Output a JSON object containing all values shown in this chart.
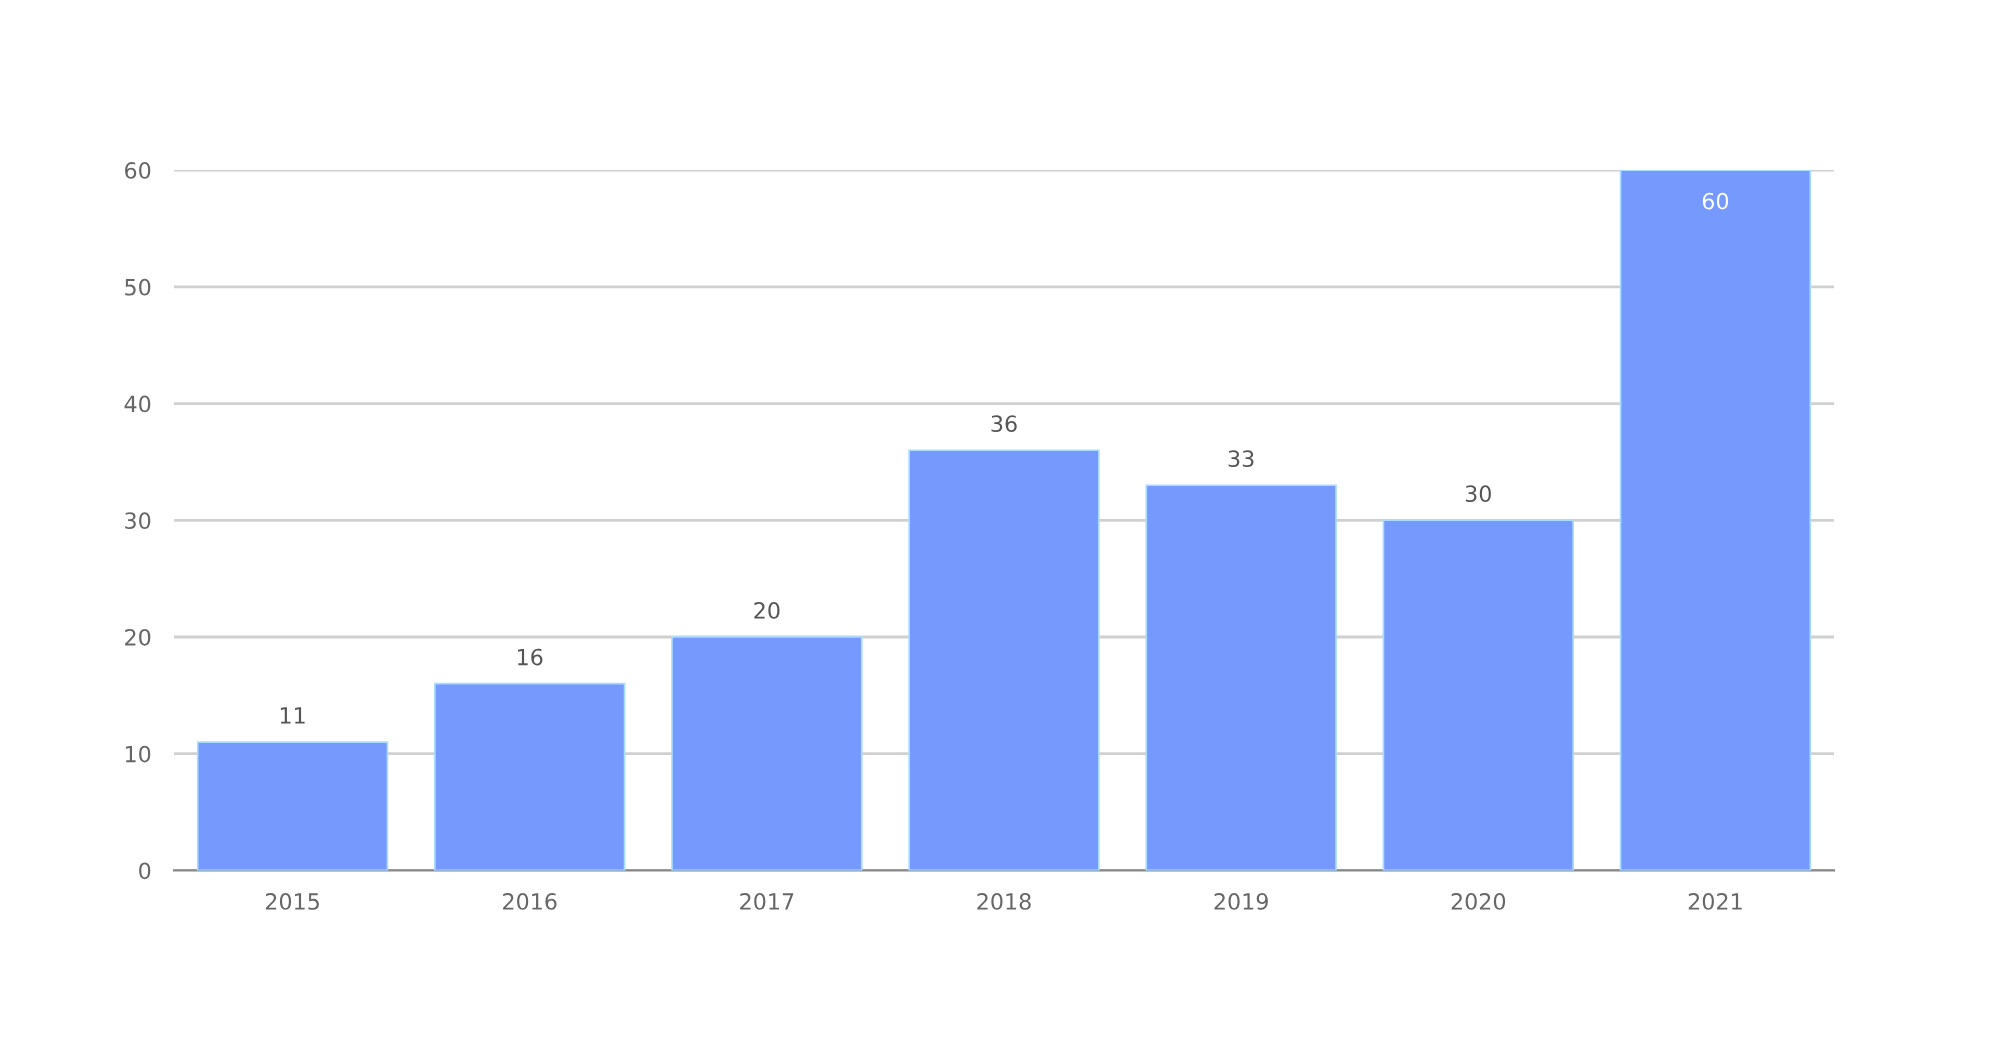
{
  "chart_data": {
    "type": "bar",
    "categories": [
      "2015",
      "2016",
      "2017",
      "2018",
      "2019",
      "2020",
      "2021"
    ],
    "values": [
      11,
      16,
      20,
      36,
      33,
      30,
      60
    ],
    "color": "#7699fd",
    "ylim": [
      0,
      60
    ],
    "yticks": [
      0,
      10,
      20,
      30,
      40,
      50,
      60
    ],
    "grid": "y",
    "data_labels": true,
    "legend": false
  }
}
